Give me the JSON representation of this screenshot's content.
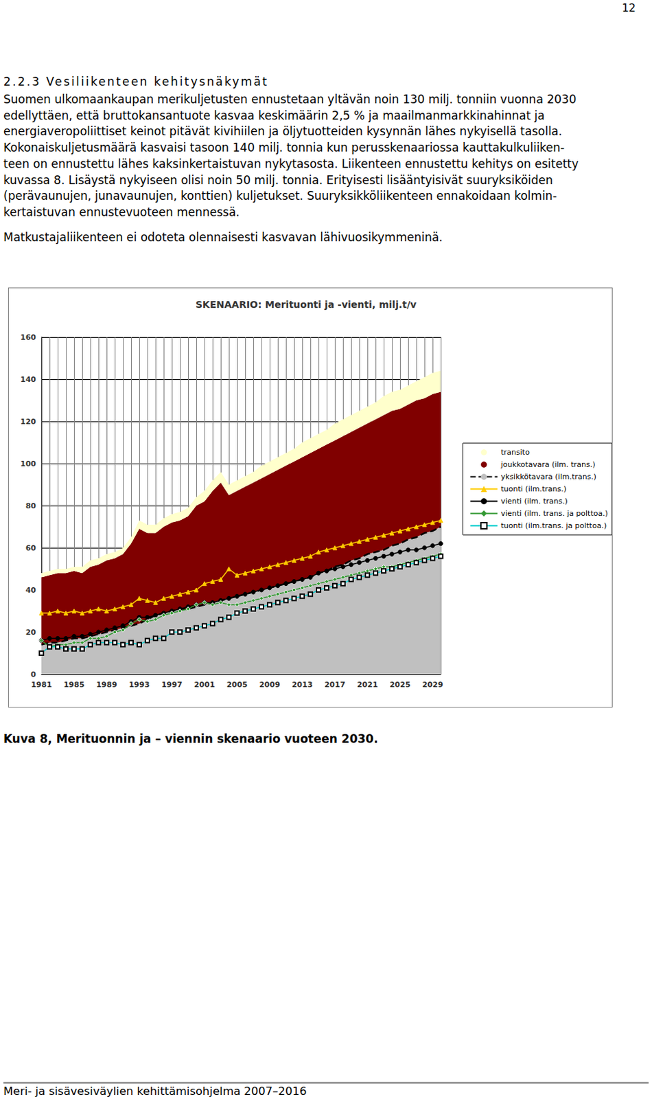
{
  "page_number": "12",
  "heading": "2.2.3 Vesiliikenteen kehitysnäkymät",
  "paragraphs": [
    [
      "Suomen ulkomaankaupan merikuljetusten ennustetaan yltävän noin 130 milj. tonniin vuonna 2030",
      "edellyttäen, että bruttokansantuote kasvaa keskimäärin 2,5 % ja maailmanmarkkinahinnat ja",
      "energiaveropoliittiset keinot pitävät kivihiilen ja öljytuotteiden kysynnän lähes nykyisellä tasolla.",
      "Kokonaiskuljetusmäärä kasvaisi tasoon 140 milj. tonnia kun perusskenaariossa kauttakulkuliiken-",
      "teen on ennustettu lähes kaksinkertaistuvan nykytasosta. Liikenteen ennustettu kehitys on esitetty",
      "kuvassa 8. Lisäystä nykyiseen olisi noin 50 milj. tonnia. Erityisesti lisääntyisivät suuryksiköiden",
      "(perävaunujen, junavaunujen, konttien) kuljetukset. Suuryksikköliikenteen ennakoidaan kolmin-",
      "kertaistuvan ennustevuoteen mennessä."
    ],
    [
      "Matkustajaliikenteen ei odoteta olennaisesti kasvavan lähivuosikymmeninä."
    ]
  ],
  "chart_data": {
    "type": "area",
    "title": "SKENAARIO: Merituonti ja -vienti, milj.t/v",
    "stacked": true,
    "grid": true,
    "legend": "right",
    "categories": [
      "1981",
      null,
      null,
      null,
      "1985",
      null,
      null,
      null,
      "1989",
      null,
      null,
      null,
      "1993",
      null,
      null,
      null,
      "1997",
      null,
      null,
      null,
      "2001",
      null,
      null,
      null,
      "2005",
      null,
      null,
      null,
      "2009",
      null,
      null,
      null,
      "2013",
      null,
      null,
      null,
      "2017",
      null,
      null,
      null,
      "2021",
      null,
      null,
      null,
      "2025",
      null,
      null,
      null,
      "2029",
      null
    ],
    "ylim": [
      0,
      160
    ],
    "yticks": [
      0,
      20,
      40,
      60,
      80,
      100,
      120,
      140,
      160
    ],
    "series": [
      {
        "name": "transito",
        "type": "area",
        "color": "#ffffcc",
        "values": [
          2,
          2,
          2,
          2,
          2,
          3,
          3,
          3,
          3,
          3,
          3,
          3,
          4,
          4,
          4,
          4,
          4,
          4,
          4,
          4,
          5,
          5,
          5,
          5,
          5,
          5,
          5,
          6,
          6,
          6,
          6,
          6,
          7,
          7,
          7,
          7,
          8,
          8,
          8,
          8,
          8,
          8,
          9,
          9,
          9,
          9,
          9,
          10,
          10,
          10
        ]
      },
      {
        "name": "joukkotavara (ilm. trans.)",
        "type": "area",
        "color": "#800000",
        "values": [
          32,
          32,
          33,
          32,
          32,
          31,
          33,
          33,
          34,
          34,
          35,
          39,
          45,
          41,
          39,
          41,
          42,
          42,
          44,
          48,
          49,
          53,
          56,
          49,
          50,
          51,
          52,
          53,
          54,
          55,
          56,
          57,
          58,
          59,
          59,
          60,
          60,
          61,
          61,
          62,
          62,
          63,
          64,
          64,
          64,
          64,
          65,
          64,
          65,
          64
        ]
      },
      {
        "name": "yksikkötavara (ilm.trans.)",
        "type": "area",
        "color": "#c0c0c0",
        "line_style": "dashed",
        "values": [
          14,
          15,
          15,
          16,
          17,
          17,
          18,
          19,
          20,
          21,
          22,
          23,
          24,
          26,
          28,
          29,
          30,
          31,
          31,
          32,
          33,
          34,
          35,
          36,
          37,
          38,
          39,
          40,
          41,
          42,
          43,
          44,
          45,
          46,
          48,
          49,
          51,
          52,
          54,
          55,
          57,
          58,
          59,
          61,
          62,
          64,
          65,
          67,
          68,
          70
        ]
      },
      {
        "name": "tuonti (ilm.trans.)",
        "type": "line",
        "color": "#ffcc00",
        "marker": "triangle",
        "values": [
          29,
          29,
          30,
          29,
          30,
          29,
          30,
          31,
          30,
          31,
          32,
          33,
          36,
          35,
          34,
          36,
          37,
          38,
          39,
          40,
          43,
          44,
          45,
          50,
          47,
          48,
          49,
          50,
          51,
          52,
          53,
          54,
          55,
          56,
          58,
          59,
          60,
          61,
          62,
          63,
          64,
          65,
          66,
          67,
          68,
          69,
          70,
          71,
          72,
          73
        ]
      },
      {
        "name": "vienti (ilm. trans.)",
        "type": "line",
        "color": "#000000",
        "marker": "circle",
        "values": [
          16,
          17,
          17,
          17,
          18,
          18,
          19,
          20,
          21,
          22,
          23,
          25,
          27,
          27,
          28,
          29,
          30,
          31,
          32,
          33,
          34,
          34,
          35,
          36,
          37,
          38,
          39,
          40,
          41,
          42,
          43,
          44,
          45,
          46,
          48,
          49,
          50,
          51,
          52,
          53,
          54,
          55,
          56,
          57,
          58,
          59,
          59,
          60,
          61,
          62
        ]
      },
      {
        "name": "vienti (ilm. trans. ja polttoa.)",
        "type": "line",
        "color": "#339933",
        "marker": "diamond",
        "values": [
          16,
          13,
          14,
          14,
          15,
          15,
          17,
          17,
          18,
          20,
          21,
          24,
          26,
          25,
          26,
          28,
          29,
          30,
          31,
          33,
          34,
          33,
          34,
          33,
          33,
          34,
          35,
          36,
          37,
          38,
          39,
          40,
          41,
          42,
          43,
          44,
          45,
          46,
          47,
          48,
          49,
          50,
          51,
          51,
          52,
          53,
          54,
          55,
          56,
          57
        ]
      },
      {
        "name": "tuonti (ilm.trans. ja polttoa.)",
        "type": "line",
        "color": "#00cccc",
        "marker": "square_open",
        "values": [
          10,
          13,
          13,
          12,
          12,
          12,
          14,
          15,
          15,
          15,
          14,
          15,
          14,
          16,
          17,
          17,
          20,
          20,
          21,
          22,
          23,
          24,
          26,
          27,
          29,
          30,
          31,
          32,
          33,
          34,
          35,
          36,
          37,
          38,
          40,
          41,
          42,
          43,
          45,
          46,
          47,
          48,
          49,
          50,
          51,
          52,
          53,
          54,
          55,
          56
        ]
      }
    ]
  },
  "caption": "Kuva 8, Merituonnin ja – viennin skenaario vuoteen 2030.",
  "footer": "Meri- ja sisävesiväylien kehittämisohjelma 2007–2016"
}
